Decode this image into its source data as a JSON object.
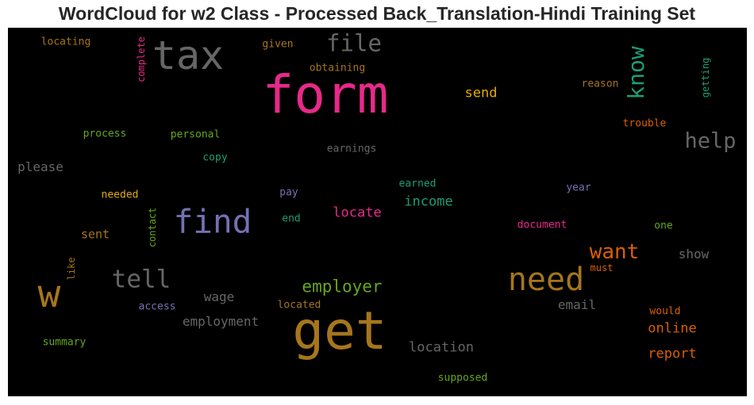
{
  "chart_data": {
    "type": "wordcloud",
    "title": "WordCloud for w2 Class - Processed Back_Translation-Hindi Training Set",
    "background": "#000000",
    "words": [
      {
        "text": "form",
        "color": "#e7298a"
      },
      {
        "text": "get",
        "color": "#a6761d"
      },
      {
        "text": "tax",
        "color": "#666666"
      },
      {
        "text": "w",
        "color": "#a6761d"
      },
      {
        "text": "need",
        "color": "#a6761d"
      },
      {
        "text": "find",
        "color": "#7570b3"
      },
      {
        "text": "file",
        "color": "#666666"
      },
      {
        "text": "know",
        "color": "#1b9e77"
      },
      {
        "text": "tell",
        "color": "#666666"
      },
      {
        "text": "help",
        "color": "#666666"
      },
      {
        "text": "want",
        "color": "#d95f02"
      },
      {
        "text": "employer",
        "color": "#66a61e"
      },
      {
        "text": "location",
        "color": "#666666"
      },
      {
        "text": "income",
        "color": "#1b9e77"
      },
      {
        "text": "locate",
        "color": "#e7298a"
      },
      {
        "text": "employment",
        "color": "#666666"
      },
      {
        "text": "report",
        "color": "#d95f02"
      },
      {
        "text": "online",
        "color": "#d95f02"
      },
      {
        "text": "send",
        "color": "#e6ab02"
      },
      {
        "text": "email",
        "color": "#666666"
      },
      {
        "text": "show",
        "color": "#666666"
      },
      {
        "text": "wage",
        "color": "#666666"
      },
      {
        "text": "please",
        "color": "#666666"
      },
      {
        "text": "sent",
        "color": "#a6761d"
      },
      {
        "text": "supposed",
        "color": "#66a61e"
      },
      {
        "text": "earnings",
        "color": "#666666"
      },
      {
        "text": "obtaining",
        "color": "#a6761d"
      },
      {
        "text": "document",
        "color": "#e7298a"
      },
      {
        "text": "trouble",
        "color": "#d95f02"
      },
      {
        "text": "reason",
        "color": "#a6761d"
      },
      {
        "text": "locating",
        "color": "#a6761d"
      },
      {
        "text": "given",
        "color": "#a6761d"
      },
      {
        "text": "complete",
        "color": "#e7298a"
      },
      {
        "text": "getting",
        "color": "#1b9e77"
      },
      {
        "text": "process",
        "color": "#66a61e"
      },
      {
        "text": "personal",
        "color": "#66a61e"
      },
      {
        "text": "copy",
        "color": "#1b9e77"
      },
      {
        "text": "needed",
        "color": "#e6ab02"
      },
      {
        "text": "pay",
        "color": "#7570b3"
      },
      {
        "text": "earned",
        "color": "#1b9e77"
      },
      {
        "text": "year",
        "color": "#7570b3"
      },
      {
        "text": "end",
        "color": "#1b9e77"
      },
      {
        "text": "contact",
        "color": "#66a61e"
      },
      {
        "text": "one",
        "color": "#66a61e"
      },
      {
        "text": "like",
        "color": "#a6761d"
      },
      {
        "text": "must",
        "color": "#d95f02"
      },
      {
        "text": "access",
        "color": "#7570b3"
      },
      {
        "text": "located",
        "color": "#a6761d"
      },
      {
        "text": "would",
        "color": "#d95f02"
      },
      {
        "text": "summary",
        "color": "#66a61e"
      }
    ]
  }
}
